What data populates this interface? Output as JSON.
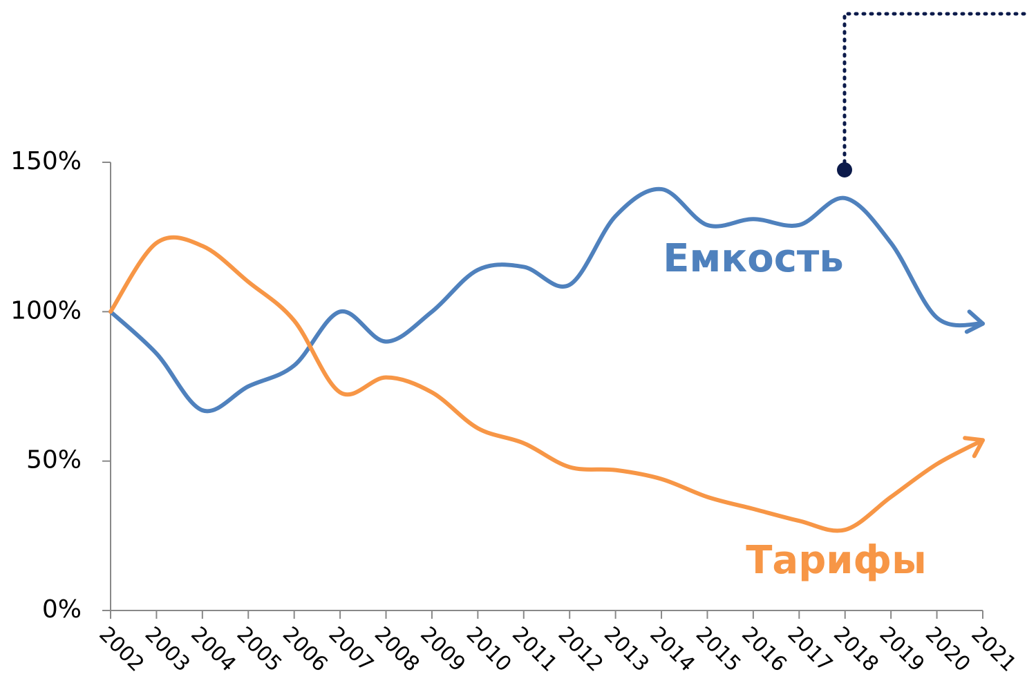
{
  "chart_data": {
    "type": "line",
    "categories": [
      "2002",
      "2003",
      "2004",
      "2005",
      "2006",
      "2007",
      "2008",
      "2009",
      "2010",
      "2011",
      "2012",
      "2013",
      "2014",
      "2015",
      "2016",
      "2017",
      "2018",
      "2019",
      "2020",
      "2021"
    ],
    "series": [
      {
        "name": "Емкость",
        "color": "#4f81bd",
        "values": [
          100,
          86,
          67,
          75,
          82,
          100,
          90,
          100,
          114,
          115,
          109,
          132,
          141,
          129,
          131,
          129,
          138,
          123,
          98,
          96
        ]
      },
      {
        "name": "Тарифы",
        "color": "#f79646",
        "values": [
          100,
          123,
          122,
          110,
          97,
          73,
          78,
          73,
          61,
          56,
          48,
          47,
          44,
          38,
          34,
          30,
          27,
          38,
          49,
          57
        ]
      }
    ],
    "ylim": [
      0,
      150
    ],
    "yticks": [
      {
        "value": 0,
        "label": "0%"
      },
      {
        "value": 50,
        "label": "50%"
      },
      {
        "value": 100,
        "label": "100%"
      },
      {
        "value": 150,
        "label": "150%"
      }
    ]
  }
}
